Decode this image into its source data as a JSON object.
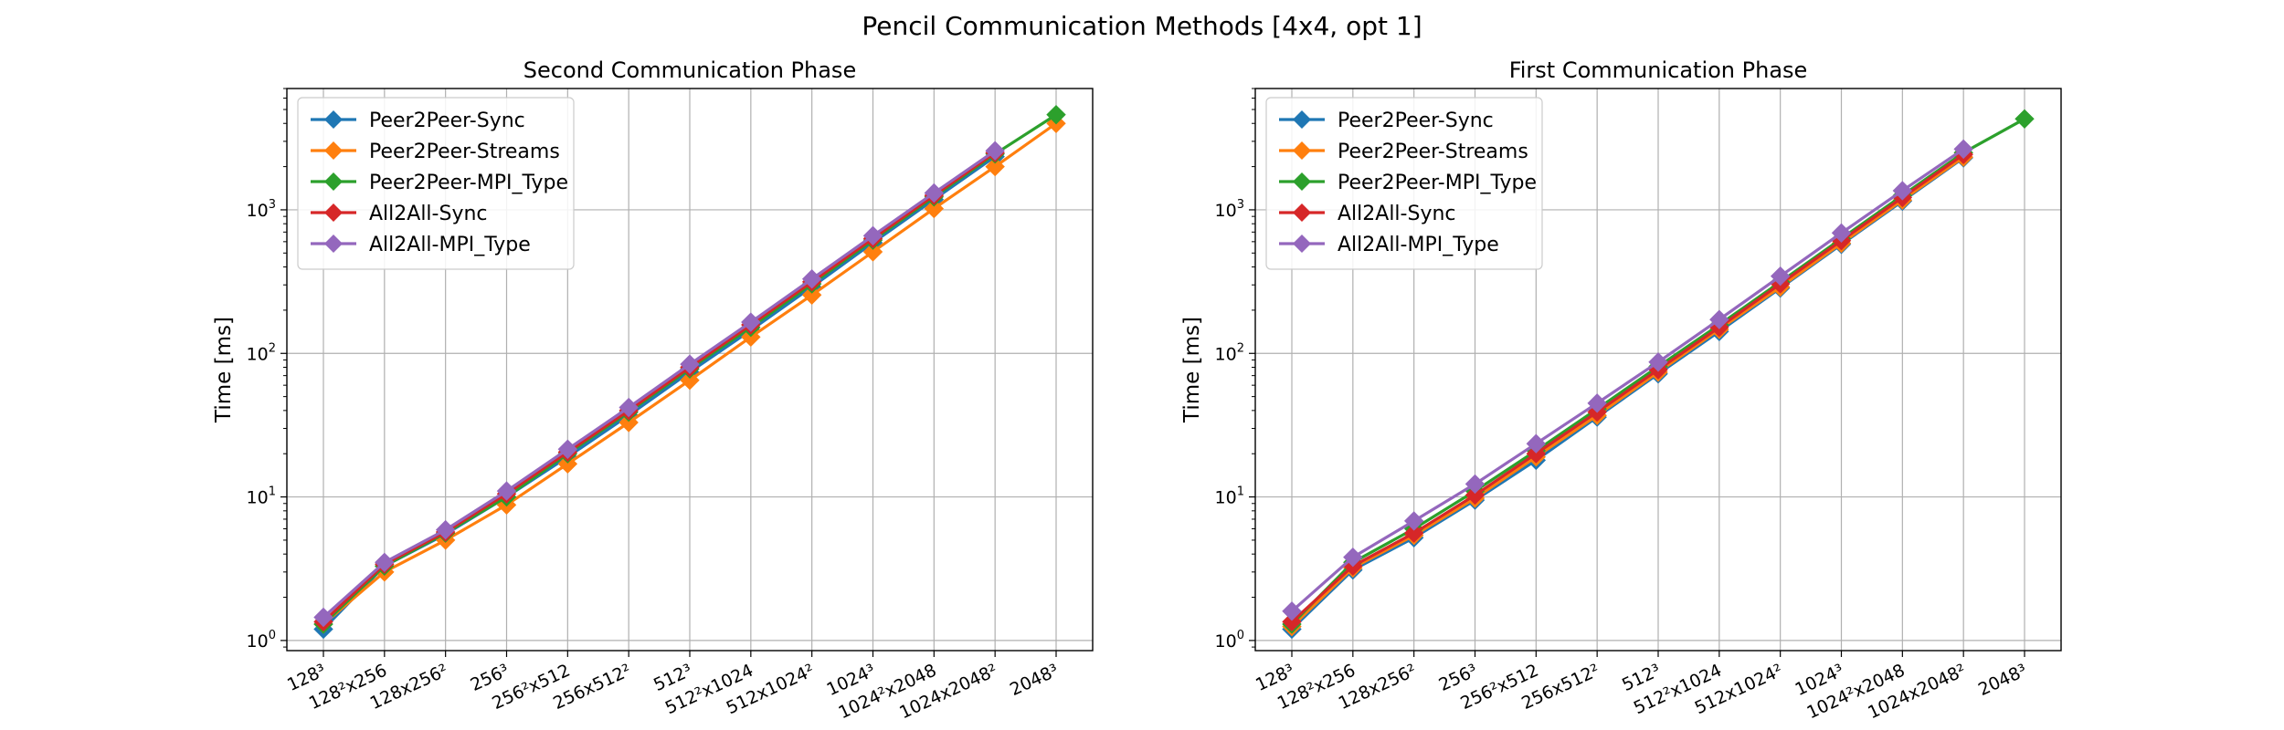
{
  "figure": {
    "suptitle": "Pencil Communication Methods [4x4, opt 1]"
  },
  "chart_data": [
    {
      "type": "line",
      "title": "Second Communication Phase",
      "xlabel": "",
      "ylabel": "Time [ms]",
      "yscale": "log",
      "ylim": [
        0.85,
        7000
      ],
      "grid": true,
      "legend": "upper-left",
      "categories": [
        "128³",
        "128²x256",
        "128x256²",
        "256³",
        "256²x512",
        "256x512²",
        "512³",
        "512²x1024",
        "512x1024²",
        "1024³",
        "1024²x2048",
        "1024x2048²",
        "2048³"
      ],
      "series": [
        {
          "name": "Peer2Peer-Sync",
          "color": "#1f77b4",
          "values": [
            1.2,
            3.3,
            5.5,
            10,
            19,
            37,
            74,
            145,
            290,
            590,
            1180,
            2350,
            null
          ]
        },
        {
          "name": "Peer2Peer-Streams",
          "color": "#ff7f0e",
          "values": [
            1.3,
            3.0,
            5.0,
            8.8,
            17,
            33,
            65,
            130,
            255,
            510,
            1020,
            2000,
            4000
          ]
        },
        {
          "name": "Peer2Peer-MPI_Type",
          "color": "#2ca02c",
          "values": [
            1.3,
            3.3,
            5.6,
            10,
            20,
            39,
            78,
            152,
            305,
            615,
            1230,
            2450,
            4600
          ]
        },
        {
          "name": "All2All-Sync",
          "color": "#d62728",
          "values": [
            1.35,
            3.4,
            5.7,
            10.5,
            20.5,
            40,
            80,
            158,
            315,
            630,
            1260,
            2500,
            null
          ]
        },
        {
          "name": "All2All-MPI_Type",
          "color": "#9467bd",
          "values": [
            1.45,
            3.5,
            5.9,
            11,
            21.5,
            42,
            84,
            165,
            330,
            660,
            1310,
            2580,
            null
          ]
        }
      ]
    },
    {
      "type": "line",
      "title": "First Communication Phase",
      "xlabel": "",
      "ylabel": "Time [ms]",
      "yscale": "log",
      "ylim": [
        0.85,
        7000
      ],
      "grid": true,
      "legend": "upper-left",
      "categories": [
        "128³",
        "128²x256",
        "128x256²",
        "256³",
        "256²x512",
        "256x512²",
        "512³",
        "512²x1024",
        "512x1024²",
        "1024³",
        "1024²x2048",
        "1024x2048²",
        "2048³"
      ],
      "series": [
        {
          "name": "Peer2Peer-Sync",
          "color": "#1f77b4",
          "values": [
            1.2,
            3.1,
            5.2,
            9.5,
            18,
            36,
            72,
            142,
            285,
            575,
            1150,
            2300,
            null
          ]
        },
        {
          "name": "Peer2Peer-Streams",
          "color": "#ff7f0e",
          "values": [
            1.25,
            3.2,
            5.4,
            9.8,
            19,
            37,
            74,
            147,
            290,
            585,
            1170,
            2330,
            null
          ]
        },
        {
          "name": "Peer2Peer-MPI_Type",
          "color": "#2ca02c",
          "values": [
            1.3,
            3.5,
            6.0,
            11,
            21,
            41,
            81,
            158,
            315,
            630,
            1260,
            2500,
            4300
          ]
        },
        {
          "name": "All2All-Sync",
          "color": "#d62728",
          "values": [
            1.35,
            3.3,
            5.6,
            10.3,
            20,
            39,
            77,
            152,
            305,
            610,
            1220,
            2430,
            null
          ]
        },
        {
          "name": "All2All-MPI_Type",
          "color": "#9467bd",
          "values": [
            1.6,
            3.8,
            6.8,
            12.3,
            23.5,
            45,
            87,
            172,
            345,
            690,
            1360,
            2650,
            null
          ]
        }
      ]
    }
  ]
}
